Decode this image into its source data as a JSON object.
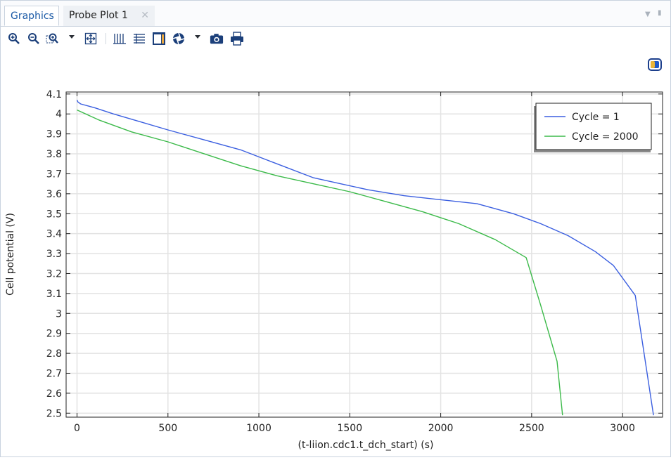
{
  "tabs": {
    "graphics": "Graphics",
    "probe_plot": "Probe Plot 1",
    "close_glyph": "✕"
  },
  "toolbar": {
    "icons": [
      "zoom-in-icon",
      "zoom-out-icon",
      "zoom-box-icon",
      "zoom-extents-icon",
      "grid-lines-icon",
      "table-icon",
      "plot-window-icon",
      "scene-light-icon",
      "camera-icon",
      "print-icon"
    ]
  },
  "chart_data": {
    "type": "line",
    "title": "",
    "xlabel": "(t-liion.cdc1.t_dch_start) (s)",
    "ylabel": "Cell potential (V)",
    "xlim": [
      -60,
      3220
    ],
    "ylim": [
      2.48,
      4.11
    ],
    "xticks": [
      0,
      500,
      1000,
      1500,
      2000,
      2500,
      3000
    ],
    "yticks": [
      "4.1",
      "4",
      "3.9",
      "3.8",
      "3.7",
      "3.6",
      "3.5",
      "3.4",
      "3.3",
      "3.2",
      "3.1",
      "3",
      "2.9",
      "2.8",
      "2.7",
      "2.6",
      "2.5"
    ],
    "grid": true,
    "legend_position": "top-right",
    "series": [
      {
        "name": "Cycle = 1",
        "color": "#3b5fe0",
        "x": [
          0,
          5,
          20,
          100,
          200,
          350,
          500,
          700,
          900,
          1100,
          1300,
          1450,
          1600,
          1800,
          2000,
          2200,
          2400,
          2550,
          2700,
          2850,
          2950,
          3070,
          3170
        ],
        "y": [
          4.07,
          4.06,
          4.05,
          4.03,
          4.0,
          3.96,
          3.92,
          3.87,
          3.82,
          3.75,
          3.68,
          3.65,
          3.62,
          3.59,
          3.57,
          3.55,
          3.5,
          3.45,
          3.39,
          3.31,
          3.24,
          3.09,
          2.49
        ]
      },
      {
        "name": "Cycle = 2000",
        "color": "#3cba4a",
        "x": [
          0,
          120,
          300,
          500,
          700,
          900,
          1100,
          1300,
          1500,
          1700,
          1900,
          2100,
          2300,
          2470,
          2550,
          2640,
          2670
        ],
        "y": [
          4.02,
          3.97,
          3.91,
          3.86,
          3.8,
          3.74,
          3.69,
          3.65,
          3.61,
          3.56,
          3.51,
          3.45,
          3.37,
          3.28,
          3.04,
          2.76,
          2.49
        ]
      }
    ]
  }
}
